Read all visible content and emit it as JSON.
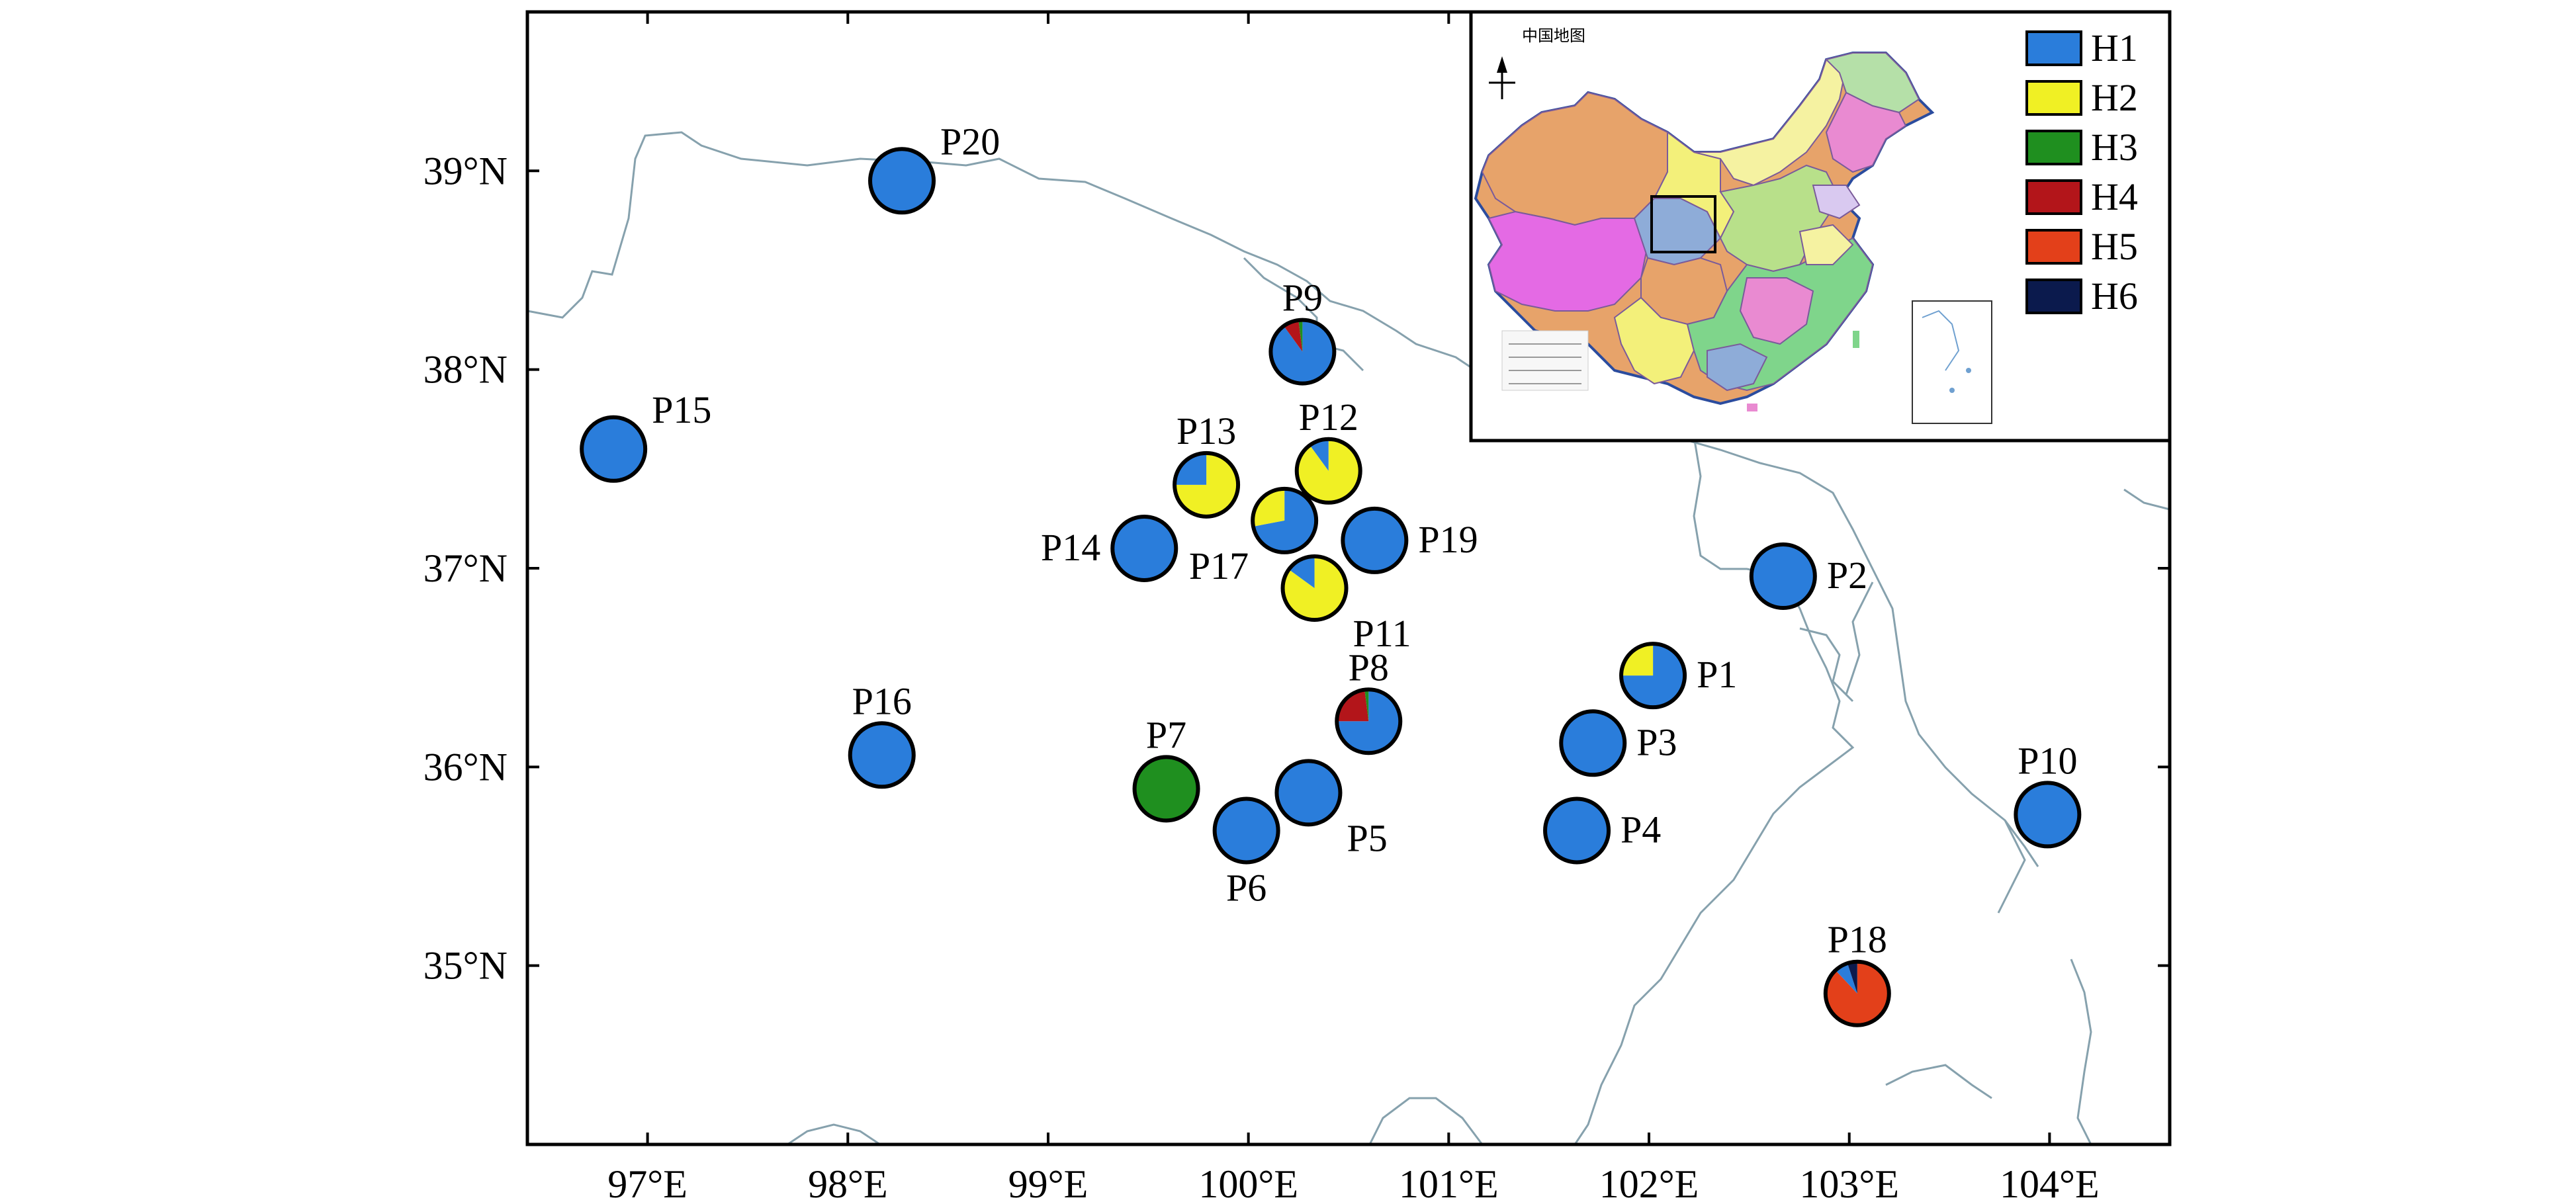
{
  "map": {
    "x_axis_ticks": [
      "97°E",
      "98°E",
      "99°E",
      "100°E",
      "101°E",
      "102°E",
      "103°E",
      "104°E"
    ],
    "x_tick_values": [
      97,
      98,
      99,
      100,
      101,
      102,
      103,
      104
    ],
    "y_axis_ticks": [
      "39°N",
      "38°N",
      "37°N",
      "36°N",
      "35°N"
    ],
    "y_tick_values": [
      39,
      38,
      37,
      36,
      35
    ],
    "lon_range": [
      96.4,
      104.6
    ],
    "lat_range": [
      34.1,
      39.8
    ]
  },
  "legend": {
    "items": [
      {
        "label": "H1",
        "color": "#2a7ddb"
      },
      {
        "label": "H2",
        "color": "#f0f024"
      },
      {
        "label": "H3",
        "color": "#1f8f1f"
      },
      {
        "label": "H4",
        "color": "#b3151a"
      },
      {
        "label": "H5",
        "color": "#e3401a"
      },
      {
        "label": "H6",
        "color": "#0b1a4d"
      }
    ]
  },
  "inset": {
    "title": "中国地图"
  },
  "sites": [
    {
      "label": "P1",
      "lon": 102.02,
      "lat": 36.46,
      "label_pos": "right",
      "pie": [
        [
          "H1",
          0.75
        ],
        [
          "H2",
          0.25
        ]
      ]
    },
    {
      "label": "P2",
      "lon": 102.67,
      "lat": 36.96,
      "label_pos": "right",
      "pie": [
        [
          "H1",
          1
        ]
      ]
    },
    {
      "label": "P3",
      "lon": 101.72,
      "lat": 36.12,
      "label_pos": "right",
      "pie": [
        [
          "H1",
          1
        ]
      ]
    },
    {
      "label": "P4",
      "lon": 101.64,
      "lat": 35.68,
      "label_pos": "right",
      "pie": [
        [
          "H1",
          1
        ]
      ]
    },
    {
      "label": "P5",
      "lon": 100.3,
      "lat": 35.87,
      "label_pos": "bottom-right",
      "pie": [
        [
          "H1",
          1
        ]
      ]
    },
    {
      "label": "P6",
      "lon": 99.99,
      "lat": 35.68,
      "label_pos": "bottom",
      "pie": [
        [
          "H1",
          1
        ]
      ]
    },
    {
      "label": "P7",
      "lon": 99.59,
      "lat": 35.89,
      "label_pos": "top",
      "pie": [
        [
          "H3",
          1
        ]
      ]
    },
    {
      "label": "P8",
      "lon": 100.6,
      "lat": 36.23,
      "label_pos": "top",
      "pie": [
        [
          "H1",
          0.75
        ],
        [
          "H4",
          0.23
        ],
        [
          "H3",
          0.02
        ]
      ]
    },
    {
      "label": "P9",
      "lon": 100.27,
      "lat": 38.09,
      "label_pos": "top",
      "pie": [
        [
          "H1",
          0.9
        ],
        [
          "H4",
          0.08
        ],
        [
          "H3",
          0.02
        ]
      ]
    },
    {
      "label": "P10",
      "lon": 103.99,
      "lat": 35.76,
      "label_pos": "top",
      "pie": [
        [
          "H1",
          1
        ]
      ]
    },
    {
      "label": "P11",
      "lon": 100.33,
      "lat": 36.9,
      "label_pos": "bottom-right",
      "pie": [
        [
          "H2",
          0.85
        ],
        [
          "H1",
          0.15
        ]
      ]
    },
    {
      "label": "P12",
      "lon": 100.4,
      "lat": 37.49,
      "label_pos": "top",
      "pie": [
        [
          "H2",
          0.9
        ],
        [
          "H1",
          0.1
        ]
      ]
    },
    {
      "label": "P13",
      "lon": 99.79,
      "lat": 37.42,
      "label_pos": "top",
      "pie": [
        [
          "H2",
          0.75
        ],
        [
          "H1",
          0.25
        ]
      ]
    },
    {
      "label": "P14",
      "lon": 99.48,
      "lat": 37.1,
      "label_pos": "left",
      "pie": [
        [
          "H1",
          1
        ]
      ]
    },
    {
      "label": "P15",
      "lon": 96.83,
      "lat": 37.6,
      "label_pos": "top-right",
      "pie": [
        [
          "H1",
          1
        ]
      ]
    },
    {
      "label": "P16",
      "lon": 98.17,
      "lat": 36.06,
      "label_pos": "top",
      "pie": [
        [
          "H1",
          1
        ]
      ]
    },
    {
      "label": "P17",
      "lon": 100.18,
      "lat": 37.24,
      "label_pos": "bottom-left",
      "pie": [
        [
          "H1",
          0.72
        ],
        [
          "H2",
          0.28
        ]
      ]
    },
    {
      "label": "P18",
      "lon": 103.04,
      "lat": 34.86,
      "label_pos": "top",
      "pie": [
        [
          "H5",
          0.88
        ],
        [
          "H1",
          0.07
        ],
        [
          "H6",
          0.05
        ]
      ]
    },
    {
      "label": "P19",
      "lon": 100.63,
      "lat": 37.14,
      "label_pos": "right",
      "pie": [
        [
          "H1",
          1
        ]
      ]
    },
    {
      "label": "P20",
      "lon": 98.27,
      "lat": 38.95,
      "label_pos": "top-right",
      "pie": [
        [
          "H1",
          1
        ]
      ]
    }
  ]
}
